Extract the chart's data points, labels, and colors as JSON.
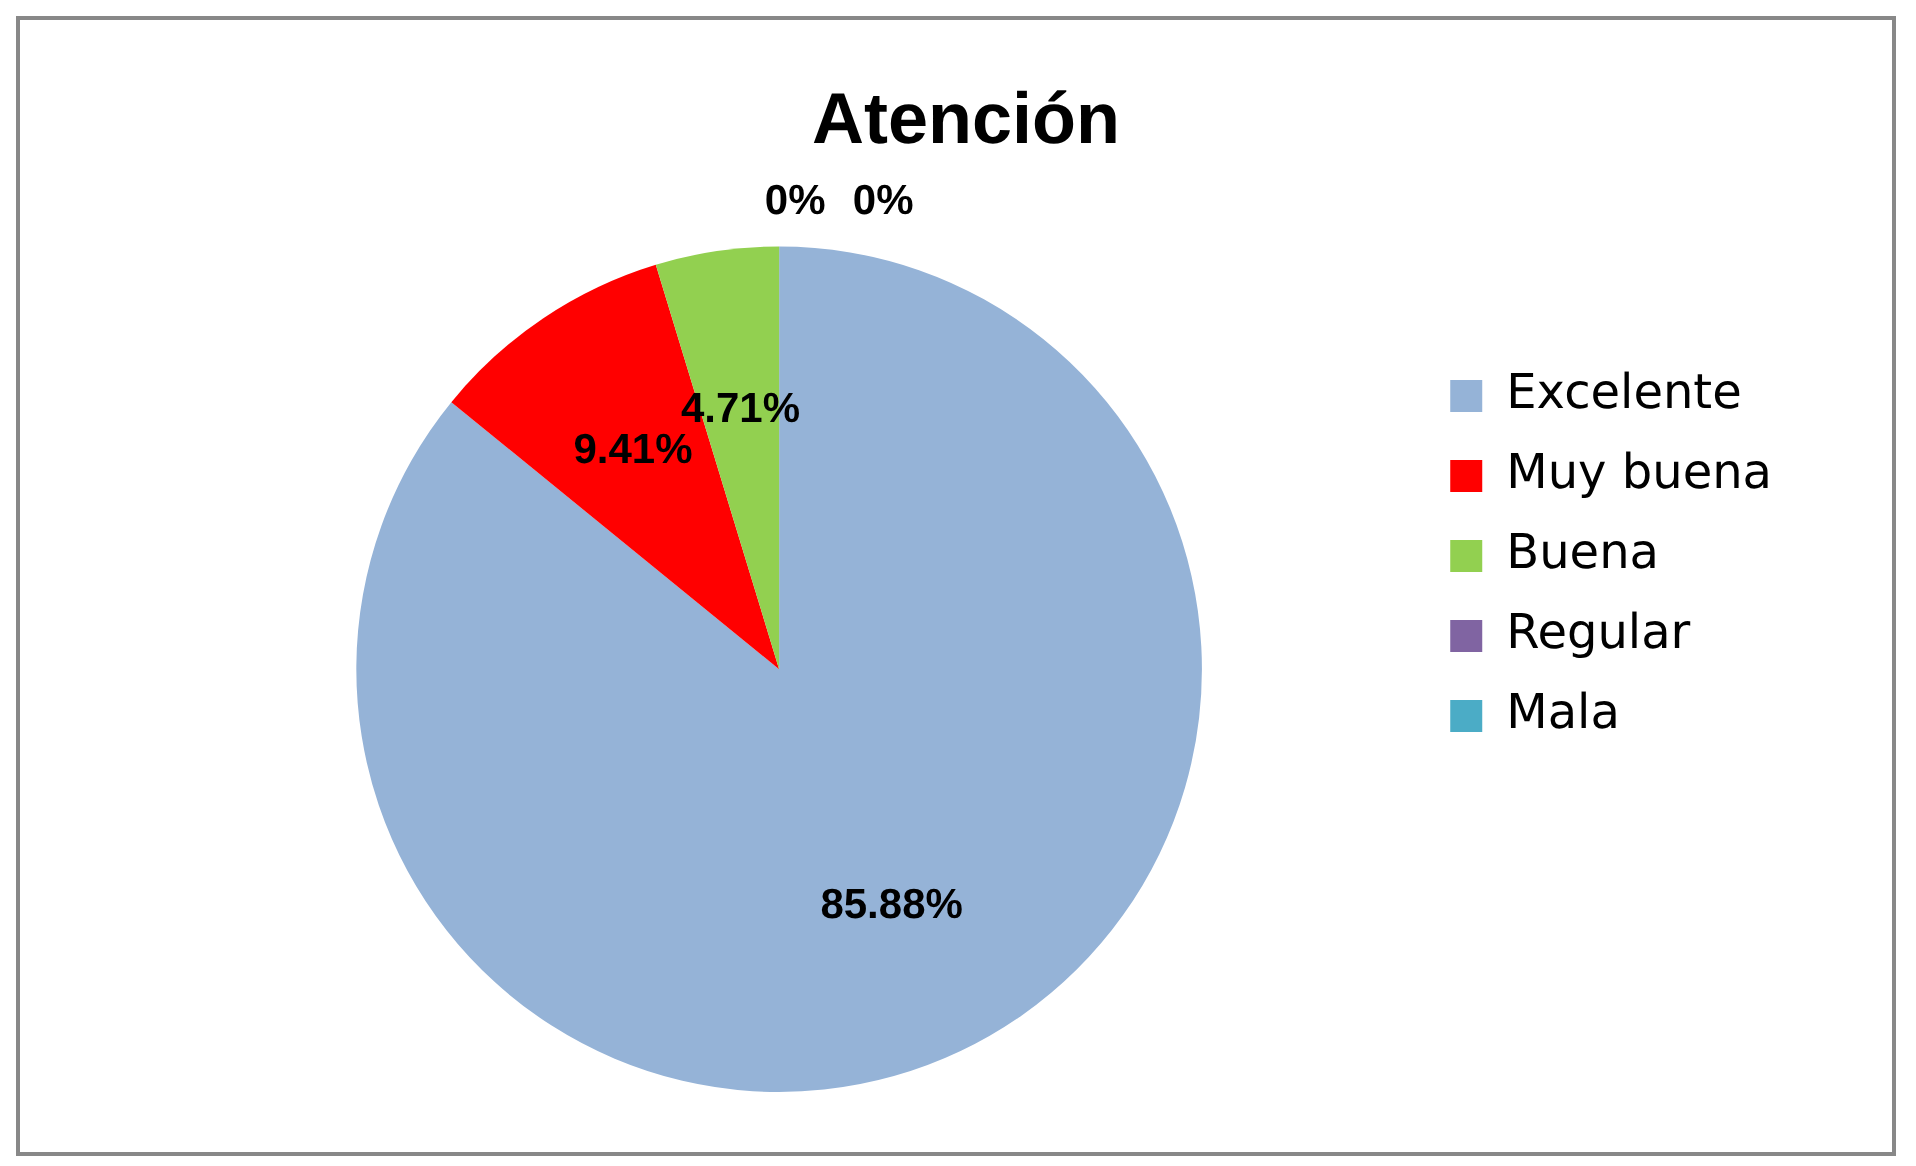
{
  "chart_data": {
    "type": "pie",
    "title": "Atención",
    "categories": [
      "Excelente",
      "Muy buena",
      "Buena",
      "Regular",
      "Mala"
    ],
    "values": [
      85.88,
      9.41,
      4.71,
      0,
      0
    ],
    "colors": [
      "#95b3d7",
      "#ff0000",
      "#92d050",
      "#8064a2",
      "#4bacc6"
    ],
    "value_labels": [
      "85.88%",
      "9.41%",
      "4.71%",
      "0%",
      "0%"
    ],
    "legend": "right"
  }
}
